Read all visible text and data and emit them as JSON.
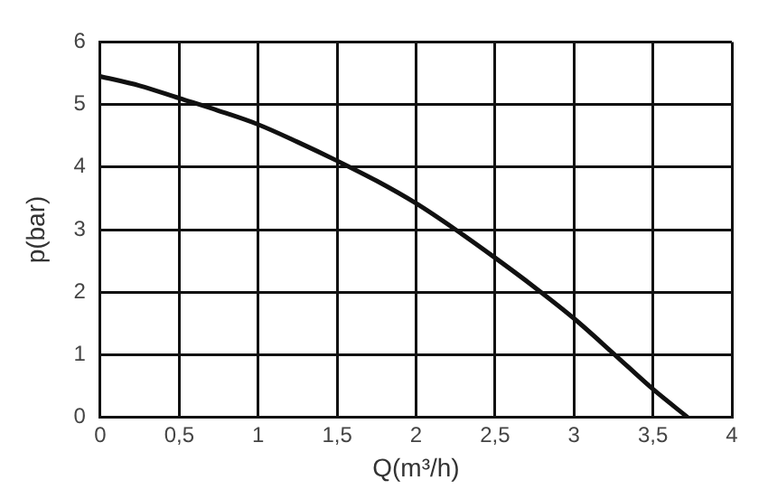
{
  "chart_data": {
    "type": "line",
    "xlabel": "Q(m³/h)",
    "ylabel": "p(bar)",
    "x": [
      0,
      0.25,
      0.5,
      0.75,
      1,
      1.25,
      1.5,
      1.75,
      2,
      2.25,
      2.5,
      2.75,
      3,
      3.25,
      3.5,
      3.72
    ],
    "series": [
      {
        "color": "#111111",
        "values": [
          5.45,
          5.3,
          5.1,
          4.9,
          4.68,
          4.4,
          4.1,
          3.78,
          3.42,
          3.0,
          2.55,
          2.08,
          1.58,
          1.02,
          0.45,
          0
        ]
      }
    ],
    "xlim": [
      0,
      4
    ],
    "ylim": [
      0,
      6
    ],
    "xticks": [
      0,
      {
        "value": 0.5,
        "label": "0,5"
      },
      1,
      {
        "value": 1.5,
        "label": "1,5"
      },
      2,
      {
        "value": 2.5,
        "label": "2,5"
      },
      3,
      {
        "value": 3.5,
        "label": "3,5"
      },
      4
    ],
    "yticks": [
      0,
      1,
      2,
      3,
      4,
      5,
      6
    ],
    "grid": true,
    "legend": false,
    "marker": "none",
    "line_style": "solid"
  }
}
